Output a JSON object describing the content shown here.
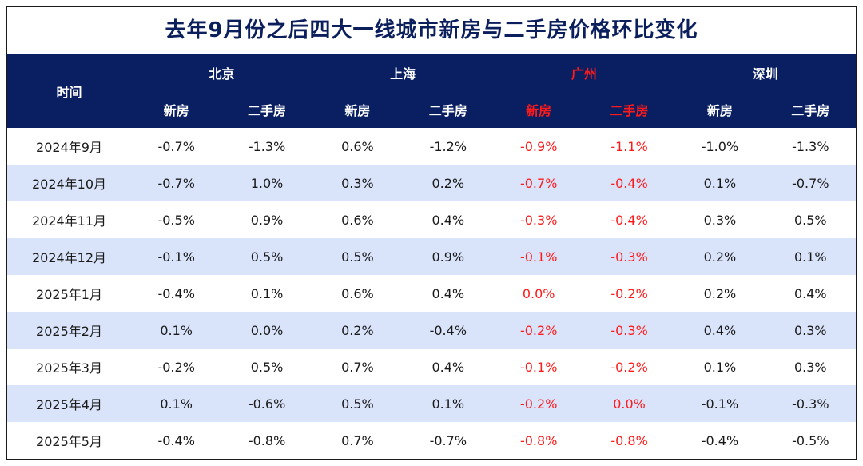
{
  "title": "去年9月份之后四大一线城市新房与二手房价格环比变化",
  "header": {
    "time_label": "时间",
    "cities": [
      {
        "name": "北京",
        "new": "新房",
        "second": "二手房"
      },
      {
        "name": "上海",
        "new": "新房",
        "second": "二手房"
      },
      {
        "name": "广州",
        "new": "新房",
        "second": "二手房"
      },
      {
        "name": "深圳",
        "new": "新房",
        "second": "二手房"
      }
    ]
  },
  "colors": {
    "header_bg": "#0a1f62",
    "highlight_red": "#ff1a1a",
    "stripe": "#d9e4fb"
  },
  "rows": [
    {
      "date": "2024年9月",
      "values": [
        "-0.7%",
        "-1.3%",
        "0.6%",
        "-1.2%",
        "-0.9%",
        "-1.1%",
        "-1.0%",
        "-1.3%"
      ]
    },
    {
      "date": "2024年10月",
      "values": [
        "-0.7%",
        "1.0%",
        "0.3%",
        "0.2%",
        "-0.7%",
        "-0.4%",
        "0.1%",
        "-0.7%"
      ]
    },
    {
      "date": "2024年11月",
      "values": [
        "-0.5%",
        "0.9%",
        "0.6%",
        "0.4%",
        "-0.3%",
        "-0.4%",
        "0.3%",
        "0.5%"
      ]
    },
    {
      "date": "2024年12月",
      "values": [
        "-0.1%",
        "0.5%",
        "0.5%",
        "0.9%",
        "-0.1%",
        "-0.3%",
        "0.2%",
        "0.1%"
      ]
    },
    {
      "date": "2025年1月",
      "values": [
        "-0.4%",
        "0.1%",
        "0.6%",
        "0.4%",
        "0.0%",
        "-0.2%",
        "0.2%",
        "0.4%"
      ]
    },
    {
      "date": "2025年2月",
      "values": [
        "0.1%",
        "0.0%",
        "0.2%",
        "-0.4%",
        "-0.2%",
        "-0.3%",
        "0.4%",
        "0.3%"
      ]
    },
    {
      "date": "2025年3月",
      "values": [
        "-0.2%",
        "0.5%",
        "0.7%",
        "0.4%",
        "-0.1%",
        "-0.2%",
        "0.1%",
        "0.3%"
      ]
    },
    {
      "date": "2025年4月",
      "values": [
        "0.1%",
        "-0.6%",
        "0.5%",
        "0.1%",
        "-0.2%",
        "0.0%",
        "-0.1%",
        "-0.3%"
      ]
    },
    {
      "date": "2025年5月",
      "values": [
        "-0.4%",
        "-0.8%",
        "0.7%",
        "-0.7%",
        "-0.8%",
        "-0.8%",
        "-0.4%",
        "-0.5%"
      ]
    }
  ]
}
